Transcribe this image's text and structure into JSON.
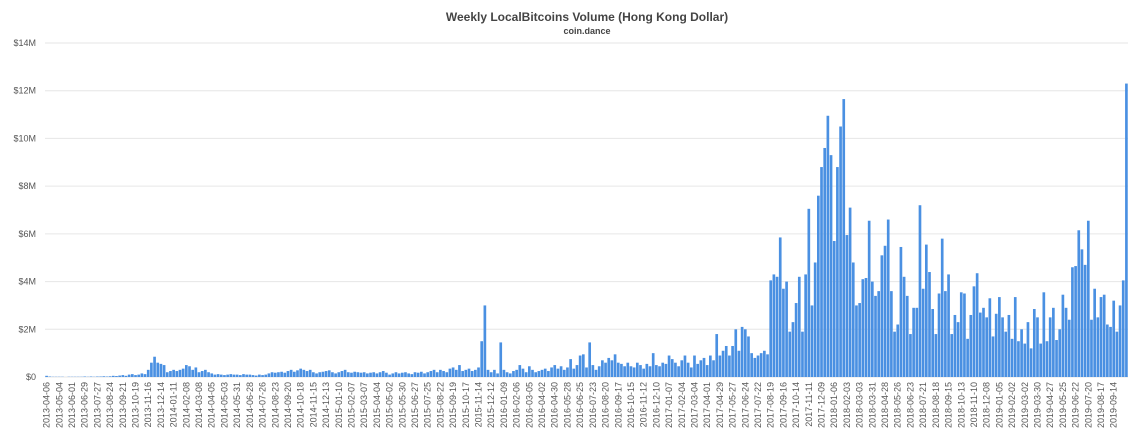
{
  "chart_data": {
    "type": "bar",
    "title": "Weekly LocalBitcoins Volume (Hong Kong Dollar)",
    "subtitle": "coin.dance",
    "color": "#4a90e2",
    "grid": true,
    "ylim": [
      0,
      14
    ],
    "yticks": [
      {
        "value": 0,
        "label": "$0"
      },
      {
        "value": 2,
        "label": "$2M"
      },
      {
        "value": 4,
        "label": "$4M"
      },
      {
        "value": 6,
        "label": "$6M"
      },
      {
        "value": 8,
        "label": "$8M"
      },
      {
        "value": 10,
        "label": "$10M"
      },
      {
        "value": 12,
        "label": "$12M"
      },
      {
        "value": 14,
        "label": "$14M"
      }
    ],
    "categories": [
      "2013-04-06",
      null,
      null,
      null,
      "2013-05-04",
      null,
      null,
      null,
      "2013-06-01",
      null,
      null,
      null,
      "2013-06-29",
      null,
      null,
      null,
      "2013-07-27",
      null,
      null,
      null,
      "2013-08-24",
      null,
      null,
      null,
      "2013-09-21",
      null,
      null,
      null,
      "2013-10-19",
      null,
      null,
      null,
      "2013-11-16",
      null,
      null,
      null,
      "2013-12-14",
      null,
      null,
      null,
      "2014-01-11",
      null,
      null,
      null,
      "2014-02-08",
      null,
      null,
      null,
      "2014-03-08",
      null,
      null,
      null,
      "2014-04-05",
      null,
      null,
      null,
      "2014-05-03",
      null,
      null,
      null,
      "2014-05-31",
      null,
      null,
      null,
      "2014-06-28",
      null,
      null,
      null,
      "2014-07-26",
      null,
      null,
      null,
      "2014-08-23",
      null,
      null,
      null,
      "2014-09-20",
      null,
      null,
      null,
      "2014-10-18",
      null,
      null,
      null,
      "2014-11-15",
      null,
      null,
      null,
      "2014-12-13",
      null,
      null,
      null,
      "2015-01-10",
      null,
      null,
      null,
      "2015-02-07",
      null,
      null,
      null,
      "2015-03-07",
      null,
      null,
      null,
      "2015-04-04",
      null,
      null,
      null,
      "2015-05-02",
      null,
      null,
      null,
      "2015-05-30",
      null,
      null,
      null,
      "2015-06-27",
      null,
      null,
      null,
      "2015-07-25",
      null,
      null,
      null,
      "2015-08-22",
      null,
      null,
      null,
      "2015-09-19",
      null,
      null,
      null,
      "2015-10-17",
      null,
      null,
      null,
      "2015-11-14",
      null,
      null,
      null,
      "2015-12-12",
      null,
      null,
      null,
      "2016-01-09",
      null,
      null,
      null,
      "2016-02-06",
      null,
      null,
      null,
      "2016-03-05",
      null,
      null,
      null,
      "2016-04-02",
      null,
      null,
      null,
      "2016-04-30",
      null,
      null,
      null,
      "2016-05-28",
      null,
      null,
      null,
      "2016-06-25",
      null,
      null,
      null,
      "2016-07-23",
      null,
      null,
      null,
      "2016-08-20",
      null,
      null,
      null,
      "2016-09-17",
      null,
      null,
      null,
      "2016-10-15",
      null,
      null,
      null,
      "2016-11-12",
      null,
      null,
      null,
      "2016-12-10",
      null,
      null,
      null,
      "2017-01-07",
      null,
      null,
      null,
      "2017-02-04",
      null,
      null,
      null,
      "2017-03-04",
      null,
      null,
      null,
      "2017-04-01",
      null,
      null,
      null,
      "2017-04-29",
      null,
      null,
      null,
      "2017-05-27",
      null,
      null,
      null,
      "2017-06-24",
      null,
      null,
      null,
      "2017-07-22",
      null,
      null,
      null,
      "2017-08-19",
      null,
      null,
      null,
      "2017-09-16",
      null,
      null,
      null,
      "2017-10-14",
      null,
      null,
      null,
      "2017-11-11",
      null,
      null,
      null,
      "2017-12-09",
      null,
      null,
      null,
      "2018-01-06",
      null,
      null,
      null,
      "2018-02-03",
      null,
      null,
      null,
      "2018-03-03",
      null,
      null,
      null,
      "2018-03-31",
      null,
      null,
      null,
      "2018-04-28",
      null,
      null,
      null,
      "2018-05-26",
      null,
      null,
      null,
      "2018-06-23",
      null,
      null,
      null,
      "2018-07-21",
      null,
      null,
      null,
      "2018-08-18",
      null,
      null,
      null,
      "2018-09-15",
      null,
      null,
      null,
      "2018-10-13",
      null,
      null,
      null,
      "2018-11-10",
      null,
      null,
      null,
      "2018-12-08",
      null,
      null,
      null,
      "2019-01-05",
      null,
      null,
      null,
      "2019-02-02",
      null,
      null,
      null,
      "2019-03-02",
      null,
      null,
      null,
      "2019-03-30",
      null,
      null,
      null,
      "2019-04-27",
      null,
      null,
      null,
      "2019-05-25",
      null,
      null,
      null,
      "2019-06-22",
      null,
      null,
      null,
      "2019-07-20",
      null,
      null,
      null,
      "2019-08-17",
      null,
      null,
      null,
      "2019-09-14",
      null,
      null,
      null,
      null
    ],
    "values": [
      0.05,
      0.02,
      0.01,
      0.01,
      0.01,
      0.01,
      0,
      0.01,
      0.01,
      0.01,
      0.01,
      0.01,
      0.02,
      0.01,
      0.02,
      0.01,
      0.02,
      0.02,
      0.03,
      0.02,
      0.03,
      0.05,
      0.04,
      0.06,
      0.08,
      0.05,
      0.1,
      0.12,
      0.08,
      0.1,
      0.15,
      0.12,
      0.3,
      0.6,
      0.85,
      0.6,
      0.55,
      0.5,
      0.2,
      0.25,
      0.3,
      0.25,
      0.3,
      0.35,
      0.5,
      0.45,
      0.3,
      0.4,
      0.2,
      0.25,
      0.3,
      0.2,
      0.15,
      0.1,
      0.12,
      0.1,
      0.08,
      0.1,
      0.12,
      0.1,
      0.1,
      0.08,
      0.12,
      0.1,
      0.1,
      0.08,
      0.06,
      0.1,
      0.08,
      0.1,
      0.15,
      0.2,
      0.18,
      0.2,
      0.22,
      0.18,
      0.25,
      0.3,
      0.22,
      0.28,
      0.35,
      0.3,
      0.25,
      0.3,
      0.2,
      0.15,
      0.2,
      0.22,
      0.25,
      0.28,
      0.2,
      0.15,
      0.2,
      0.25,
      0.3,
      0.2,
      0.18,
      0.22,
      0.2,
      0.18,
      0.2,
      0.15,
      0.18,
      0.2,
      0.15,
      0.2,
      0.25,
      0.18,
      0.1,
      0.15,
      0.2,
      0.15,
      0.18,
      0.2,
      0.15,
      0.12,
      0.2,
      0.18,
      0.22,
      0.15,
      0.2,
      0.25,
      0.3,
      0.2,
      0.3,
      0.25,
      0.2,
      0.35,
      0.4,
      0.3,
      0.5,
      0.25,
      0.3,
      0.35,
      0.25,
      0.3,
      0.4,
      1.5,
      3.0,
      0.3,
      0.2,
      0.3,
      0.15,
      1.45,
      0.3,
      0.2,
      0.15,
      0.25,
      0.3,
      0.5,
      0.35,
      0.2,
      0.45,
      0.3,
      0.2,
      0.25,
      0.3,
      0.35,
      0.25,
      0.4,
      0.5,
      0.35,
      0.45,
      0.3,
      0.4,
      0.75,
      0.35,
      0.5,
      0.9,
      0.95,
      0.4,
      1.45,
      0.5,
      0.3,
      0.45,
      0.7,
      0.6,
      0.8,
      0.7,
      0.95,
      0.6,
      0.55,
      0.45,
      0.6,
      0.45,
      0.4,
      0.6,
      0.5,
      0.35,
      0.55,
      0.45,
      1.0,
      0.5,
      0.45,
      0.6,
      0.55,
      0.9,
      0.75,
      0.6,
      0.45,
      0.7,
      0.9,
      0.6,
      0.4,
      0.9,
      0.55,
      0.7,
      0.8,
      0.5,
      0.9,
      0.7,
      1.8,
      0.9,
      1.1,
      1.3,
      0.9,
      1.3,
      2.0,
      1.1,
      2.1,
      2.0,
      1.7,
      1.0,
      0.8,
      0.9,
      1.0,
      1.1,
      0.95,
      4.05,
      4.3,
      4.2,
      5.85,
      3.7,
      4.0,
      1.9,
      2.3,
      3.1,
      4.2,
      1.9,
      4.3,
      7.05,
      3.0,
      4.8,
      7.6,
      8.8,
      9.6,
      10.95,
      9.3,
      5.7,
      8.8,
      10.5,
      11.65,
      5.95,
      7.1,
      4.8,
      3.0,
      3.1,
      4.1,
      4.15,
      6.55,
      4.0,
      3.4,
      3.6,
      5.1,
      5.5,
      6.6,
      3.6,
      1.9,
      2.2,
      5.45,
      4.2,
      3.4,
      1.8,
      2.9,
      2.9,
      7.2,
      3.7,
      5.55,
      4.4,
      2.85,
      1.8,
      3.5,
      5.8,
      3.6,
      4.3,
      1.8,
      2.6,
      2.3,
      3.55,
      3.5,
      1.6,
      2.6,
      3.8,
      4.35,
      2.7,
      2.9,
      2.5,
      3.3,
      1.7,
      2.65,
      3.35,
      2.5,
      1.9,
      2.6,
      1.6,
      3.35,
      1.5,
      2.0,
      1.4,
      2.3,
      1.2,
      2.85,
      2.5,
      1.4,
      3.55,
      1.5,
      2.5,
      2.9,
      1.55,
      2.0,
      3.45,
      2.9,
      2.4,
      4.6,
      4.65,
      6.15,
      5.35,
      4.7,
      6.55,
      2.4,
      3.7,
      2.5,
      3.35,
      3.45,
      2.2,
      2.1,
      3.2,
      1.9,
      3.0,
      4.05,
      12.3
    ]
  }
}
